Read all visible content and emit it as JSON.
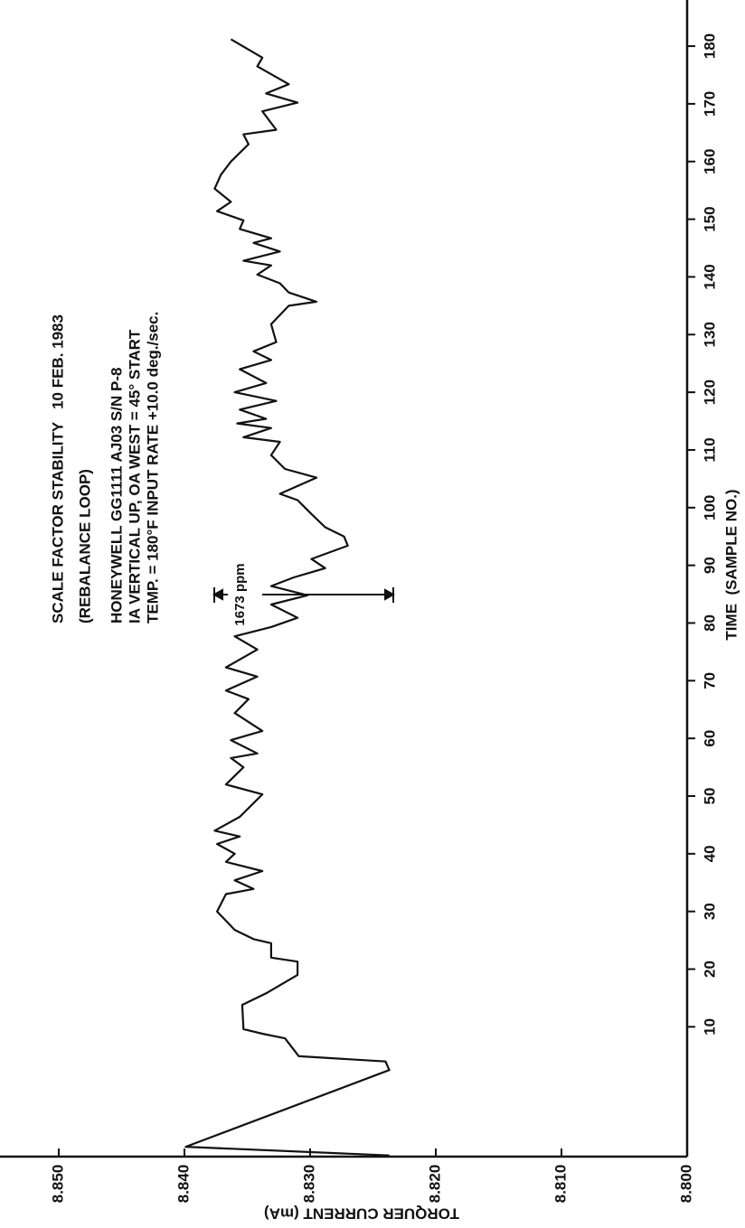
{
  "chart_data": {
    "type": "line",
    "title": "SCALE FACTOR STABILITY   10 FEB. 1983",
    "subtitle": "(REBALANCE LOOP)",
    "notes": [
      "HONEYWELL GG1111 AJ03 S/N P-8",
      "IA VERTICAL UP, OA WEST = 45° START",
      "TEMP. = 180°F INPUT RATE +10.0 deg./sec."
    ],
    "annotation": "1673 ppm",
    "x_label": "TIME  (SAMPLE NO.)",
    "y_label": "TORQUER CURRENT (mA)",
    "xlim": [
      -12.5,
      188
    ],
    "xticks": [
      10,
      20,
      30,
      40,
      50,
      60,
      70,
      80,
      90,
      100,
      110,
      120,
      130,
      140,
      150,
      160,
      170,
      180
    ],
    "ylim": [
      8.8,
      8.85
    ],
    "yticks": [
      {
        "value": 8.85,
        "label": "8.850"
      },
      {
        "value": 8.84,
        "label": "8.840"
      },
      {
        "value": 8.83,
        "label": "8.830"
      },
      {
        "value": 8.82,
        "label": "8.820"
      },
      {
        "value": 8.81,
        "label": "8.810"
      },
      {
        "value": 8.8,
        "label": "8.800"
      }
    ],
    "series": [
      {
        "color": "#111111",
        "x": [
          -12.3,
          -10.8,
          2.5,
          4,
          4.9,
          8,
          8.8,
          9.6,
          13.8,
          15.8,
          19,
          21.3,
          22,
          24.5,
          25.2,
          26.8,
          30,
          33,
          33.9,
          35.4,
          37,
          38.6,
          40,
          41.7,
          43,
          44,
          46.4,
          50.3,
          52,
          55,
          56.6,
          57.4,
          59.7,
          61.3,
          64.4,
          66.8,
          68.3,
          70.7,
          72.3,
          75.4,
          77.7,
          79.3,
          80.9,
          83.2,
          84.8,
          86.4,
          87.9,
          89.5,
          91.1,
          93.4,
          95,
          96.6,
          98.9,
          101.3,
          102.4,
          105.2,
          106.7,
          109.1,
          111.4,
          112.2,
          113.8,
          114.6,
          115.4,
          117,
          118.5,
          120,
          121.6,
          124,
          125.6,
          127.1,
          128.7,
          131.8,
          135,
          135.7,
          137.3,
          138.9,
          140.4,
          142,
          142.8,
          144.4,
          145.9,
          146.7,
          148.3,
          149.8,
          151.4,
          153,
          155.3,
          157.7,
          160,
          163,
          164.7,
          165.5,
          168.7,
          170.2,
          171.8,
          173.4,
          176.5,
          178,
          181.2
        ],
        "values": [
          8.8237,
          8.8399,
          8.8237,
          8.824,
          8.8309,
          8.832,
          8.8338,
          8.8353,
          8.8354,
          8.8335,
          8.831,
          8.831,
          8.8331,
          8.8331,
          8.8345,
          8.836,
          8.8374,
          8.8367,
          8.8345,
          8.836,
          8.8338,
          8.8367,
          8.836,
          8.8374,
          8.8356,
          8.8376,
          8.8356,
          8.8338,
          8.8367,
          8.8353,
          8.8363,
          8.8342,
          8.8363,
          8.8338,
          8.836,
          8.8349,
          8.8367,
          8.8342,
          8.8367,
          8.8342,
          8.836,
          8.8331,
          8.831,
          8.8331,
          8.8302,
          8.8331,
          8.8313,
          8.8288,
          8.8299,
          8.827,
          8.8273,
          8.8288,
          8.8299,
          8.831,
          8.8324,
          8.8295,
          8.832,
          8.8331,
          8.8324,
          8.8353,
          8.8331,
          8.8358,
          8.8335,
          8.8356,
          8.8327,
          8.836,
          8.8335,
          8.8356,
          8.8331,
          8.8345,
          8.8327,
          8.8331,
          8.8317,
          8.8295,
          8.8317,
          8.8324,
          8.8342,
          8.8331,
          8.8353,
          8.8324,
          8.8345,
          8.8331,
          8.8356,
          8.8353,
          8.8374,
          8.8363,
          8.8376,
          8.8371,
          8.8363,
          8.8349,
          8.8353,
          8.8327,
          8.8338,
          8.831,
          8.8335,
          8.8317,
          8.8342,
          8.8338,
          8.8363
        ]
      }
    ]
  }
}
